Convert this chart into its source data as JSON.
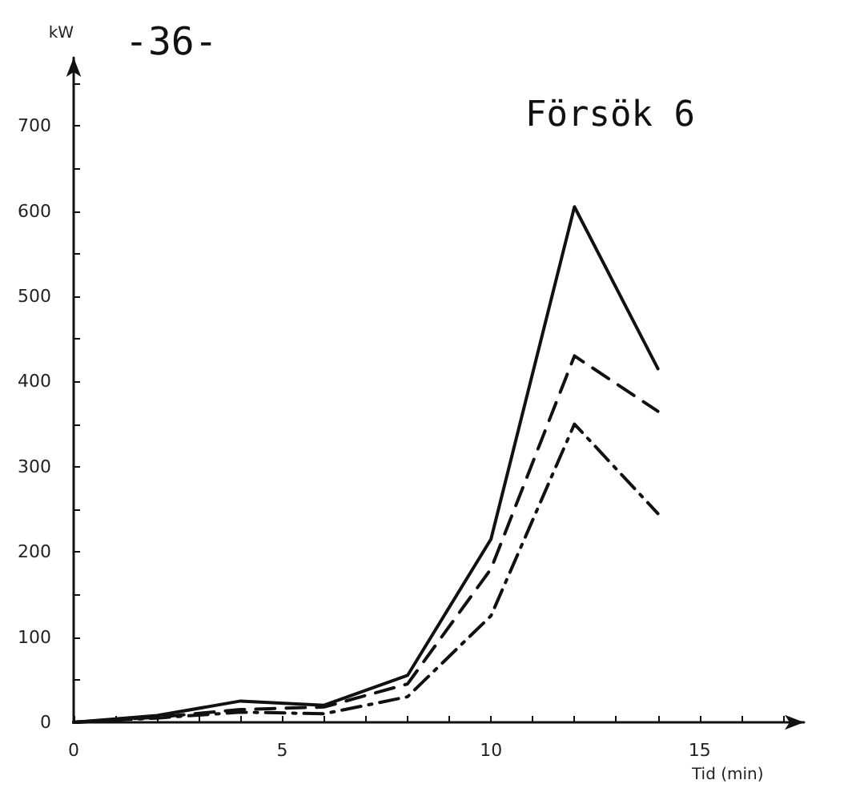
{
  "chart_data": {
    "type": "line",
    "title": "Försök 6",
    "xlabel": "Tid (min)",
    "ylabel": "kW",
    "annotations": [
      "-36-"
    ],
    "x": [
      0,
      2,
      4,
      6,
      8,
      10,
      12,
      14
    ],
    "series": [
      {
        "color": "#111111",
        "line_style": "solid",
        "values": [
          0,
          8,
          25,
          20,
          55,
          215,
          605,
          415
        ]
      },
      {
        "color": "#111111",
        "line_style": "dashed",
        "values": [
          0,
          6,
          15,
          18,
          45,
          180,
          430,
          365
        ]
      },
      {
        "color": "#111111",
        "line_style": "dashdot",
        "values": [
          0,
          5,
          12,
          10,
          30,
          125,
          350,
          245
        ]
      }
    ],
    "xlim": [
      0,
      17.5
    ],
    "ylim": [
      0,
      780
    ],
    "xticks": [
      0,
      {
        "value": 1,
        "label": null
      },
      {
        "value": 2,
        "label": null
      },
      {
        "value": 3,
        "label": null
      },
      {
        "value": 4,
        "label": null
      },
      5,
      {
        "value": 6,
        "label": null
      },
      {
        "value": 7,
        "label": null
      },
      {
        "value": 8,
        "label": null
      },
      {
        "value": 9,
        "label": null
      },
      10,
      {
        "value": 11,
        "label": null
      },
      {
        "value": 12,
        "label": null
      },
      {
        "value": 13,
        "label": null
      },
      {
        "value": 14,
        "label": null
      },
      15,
      {
        "value": 16,
        "label": null
      },
      {
        "value": 17,
        "label": null
      }
    ],
    "yticks": [
      0,
      {
        "value": 50,
        "label": null
      },
      100,
      {
        "value": 150,
        "label": null
      },
      200,
      {
        "value": 250,
        "label": null
      },
      300,
      {
        "value": 350,
        "label": null
      },
      400,
      {
        "value": 450,
        "label": null
      },
      500,
      {
        "value": 550,
        "label": null
      },
      600,
      {
        "value": 650,
        "label": null
      },
      700,
      {
        "value": 750,
        "label": null
      }
    ],
    "grid": false,
    "marker": "none"
  }
}
